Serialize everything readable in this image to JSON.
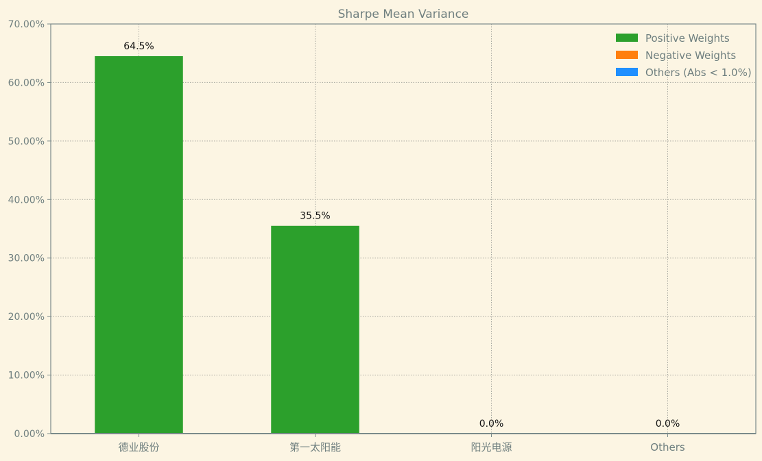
{
  "chart_data": {
    "type": "bar",
    "title": "Sharpe Mean Variance",
    "xlabel": "",
    "ylabel": "",
    "categories": [
      "德业股份",
      "第一太阳能",
      "阳光电源",
      "Others"
    ],
    "values": [
      64.5,
      35.5,
      0.0,
      0.0
    ],
    "value_labels": [
      "64.5%",
      "35.5%",
      "0.0%",
      "0.0%"
    ],
    "ylim": [
      0,
      70
    ],
    "yticks": [
      0,
      10,
      20,
      30,
      40,
      50,
      60,
      70
    ],
    "ytick_labels": [
      "0.00%",
      "10.00%",
      "20.00%",
      "30.00%",
      "40.00%",
      "50.00%",
      "60.00%",
      "70.00%"
    ],
    "grid": true,
    "legend_position": "top-right",
    "series": [
      {
        "name": "Positive Weights",
        "color": "#2ca02c"
      },
      {
        "name": "Negative Weights",
        "color": "#ff7f0e"
      },
      {
        "name": "Others (Abs < 1.0%)",
        "color": "#1f8fff"
      }
    ]
  },
  "colors": {
    "background": "#fcf5e3",
    "axis": "#7a8a8a",
    "grid": "#a8a8a0",
    "text": "#6f7f7f",
    "label_text": "#111111"
  }
}
